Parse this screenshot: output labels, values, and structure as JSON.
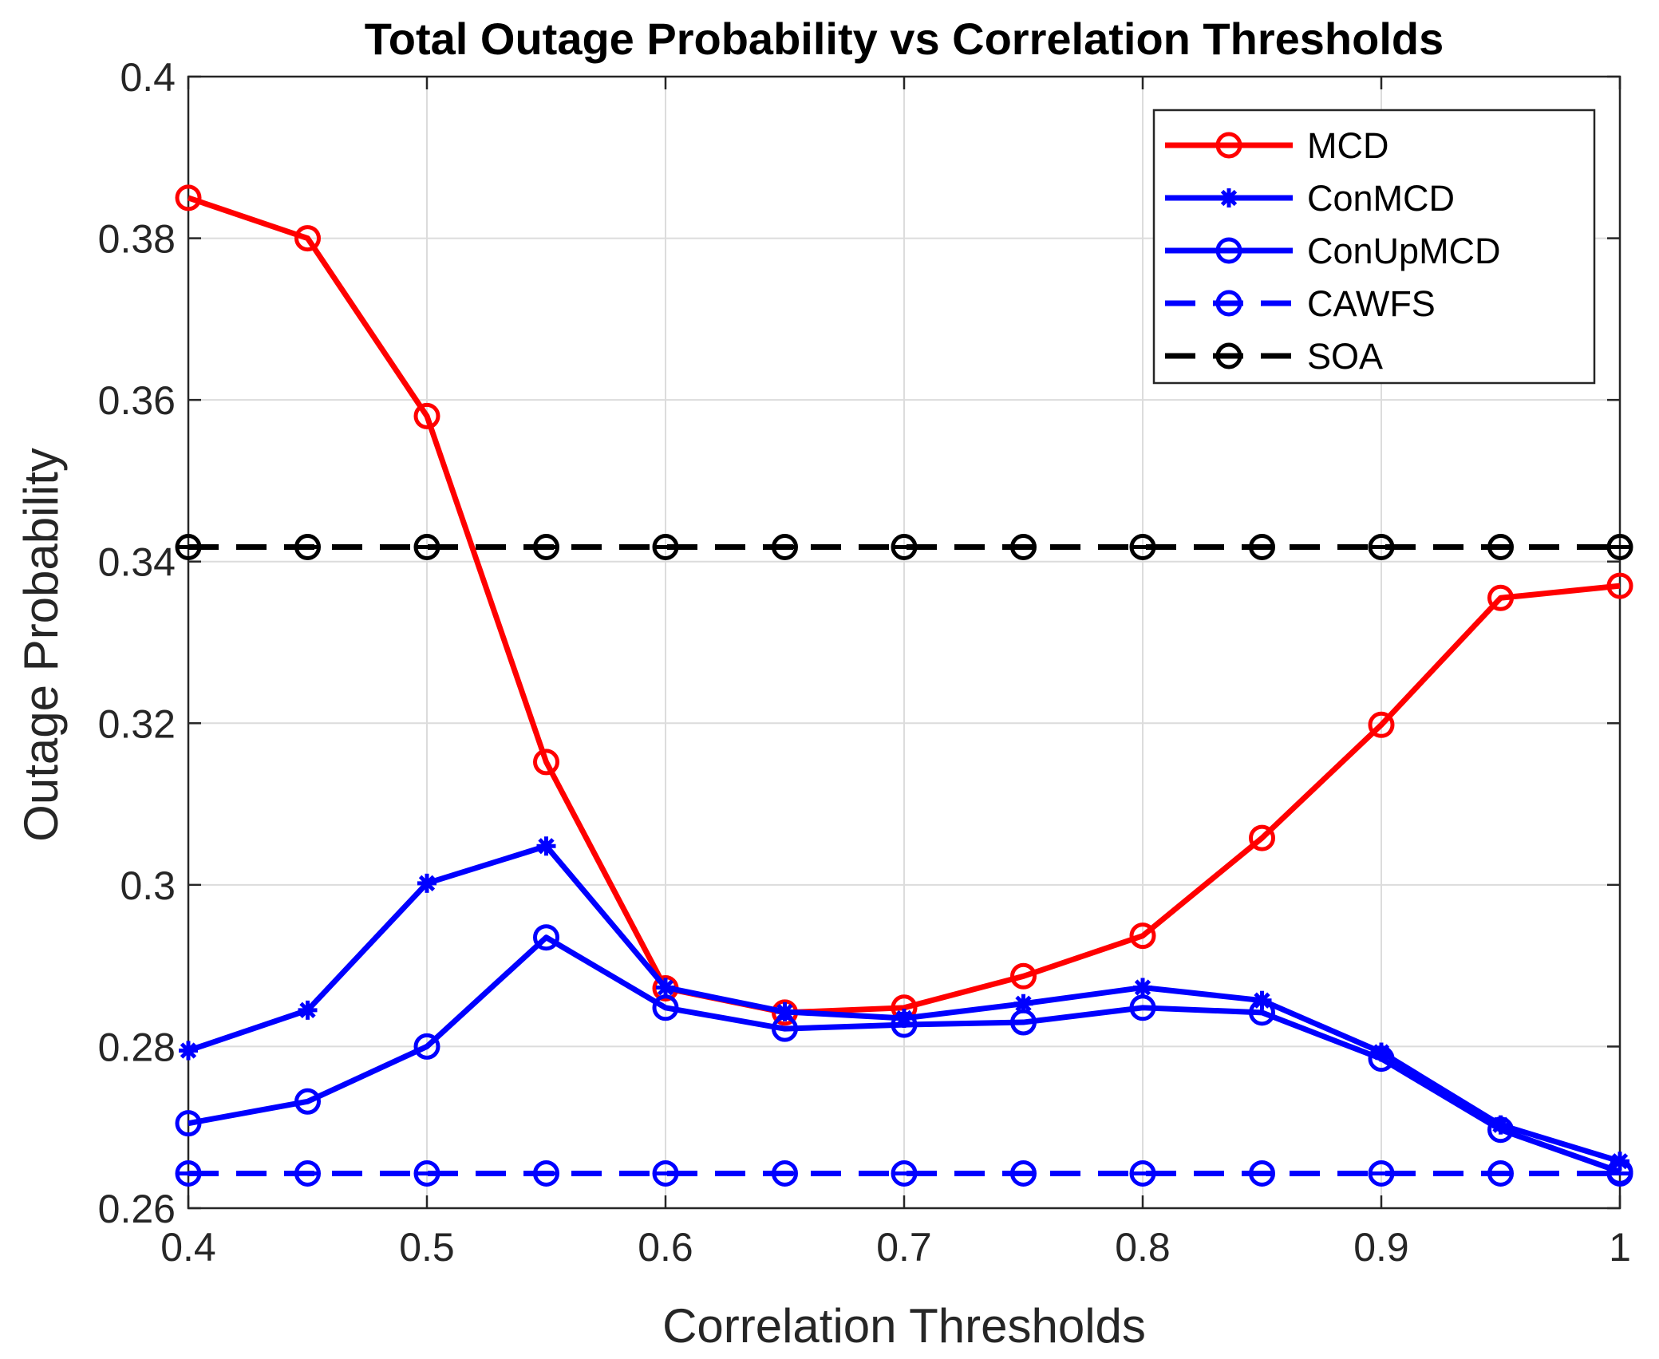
{
  "chart_data": {
    "type": "line",
    "title": "Total Outage Probability vs Correlation Thresholds",
    "xlabel": "Correlation Thresholds",
    "ylabel": "Outage Probability",
    "xlim": [
      0.4,
      1.0
    ],
    "ylim": [
      0.26,
      0.4
    ],
    "xticks": [
      0.4,
      0.5,
      0.6,
      0.7,
      0.8,
      0.9,
      1.0
    ],
    "xtick_labels": [
      "0.4",
      "0.5",
      "0.6",
      "0.7",
      "0.8",
      "0.9",
      "1"
    ],
    "yticks": [
      0.26,
      0.28,
      0.3,
      0.32,
      0.34,
      0.36,
      0.38,
      0.4
    ],
    "ytick_labels": [
      "0.26",
      "0.28",
      "0.3",
      "0.32",
      "0.34",
      "0.36",
      "0.38",
      "0.4"
    ],
    "grid": true,
    "legend_position": "top-right",
    "x": [
      0.4,
      0.45,
      0.5,
      0.55,
      0.6,
      0.65,
      0.7,
      0.75,
      0.8,
      0.85,
      0.9,
      0.95,
      1.0
    ],
    "series": [
      {
        "name": "MCD",
        "color": "#ff0000",
        "line_style": "solid",
        "marker": "circle",
        "values": [
          0.385,
          0.38,
          0.358,
          0.3152,
          0.2872,
          0.2842,
          0.2848,
          0.2887,
          0.2937,
          0.3058,
          0.3198,
          0.3355,
          0.337
        ]
      },
      {
        "name": "ConMCD",
        "color": "#0000ff",
        "line_style": "solid",
        "marker": "asterisk",
        "values": [
          0.2795,
          0.2845,
          0.3002,
          0.3048,
          0.2873,
          0.2843,
          0.2835,
          0.2853,
          0.2873,
          0.2857,
          0.2793,
          0.2703,
          0.2658
        ]
      },
      {
        "name": "ConUpMCD",
        "color": "#0000ff",
        "line_style": "solid",
        "marker": "circle",
        "values": [
          0.2705,
          0.2732,
          0.28,
          0.2935,
          0.2848,
          0.2822,
          0.2827,
          0.283,
          0.2848,
          0.2842,
          0.2785,
          0.2697,
          0.2645
        ]
      },
      {
        "name": "CAWFS",
        "color": "#0000ff",
        "line_style": "dashed",
        "marker": "circle-dash",
        "values": [
          0.2643,
          0.2643,
          0.2643,
          0.2643,
          0.2643,
          0.2643,
          0.2643,
          0.2643,
          0.2643,
          0.2643,
          0.2643,
          0.2643,
          0.2643
        ]
      },
      {
        "name": "SOA",
        "color": "#000000",
        "line_style": "dashed",
        "marker": "circle-dash",
        "values": [
          0.3418,
          0.3418,
          0.3418,
          0.3418,
          0.3418,
          0.3418,
          0.3418,
          0.3418,
          0.3418,
          0.3418,
          0.3418,
          0.3418,
          0.3418
        ]
      }
    ]
  }
}
